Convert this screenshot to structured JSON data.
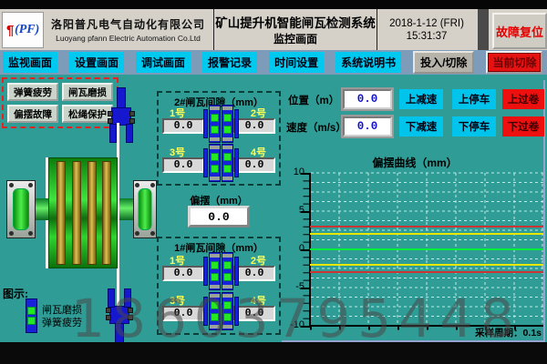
{
  "header": {
    "logo": "(PF)",
    "company_cn": "洛阳普凡电气自动化有限公司",
    "company_en": "Luoyang pfann Electric Automation Co.Ltd",
    "title_line1": "矿山提升机智能闸瓦检测系统",
    "title_line2": "监控画面",
    "date": "2018-1-12 (FRI)",
    "time": "15:31:37",
    "fault_reset": "故障复位"
  },
  "menu": {
    "items": [
      "监视画面",
      "设置画面",
      "调试画面",
      "报警记录",
      "时间设置",
      "系统说明书"
    ],
    "engage": "投入/切除",
    "current": "当前切除"
  },
  "alarm_box": {
    "buttons": [
      "弹簧疲劳",
      "闸瓦磨损",
      "偏摆故障",
      "松绳保护"
    ]
  },
  "brake2": {
    "title": "2#闸瓦间隙（mm）",
    "labels": [
      "1号",
      "2号",
      "3号",
      "4号"
    ],
    "values": [
      "0.0",
      "0.0",
      "0.0",
      "0.0"
    ]
  },
  "brake1": {
    "title": "1#闸瓦间隙（mm）",
    "labels": [
      "1号",
      "2号",
      "3号",
      "4号"
    ],
    "values": [
      "0.0",
      "0.0",
      "0.0",
      "0.0"
    ]
  },
  "deflection": {
    "label": "偏摆（mm）",
    "value": "0.0"
  },
  "status": {
    "position_label": "位置（m）",
    "position_value": "0.0",
    "speed_label": "速度（m/s）",
    "speed_value": "0.0",
    "up": [
      "上减速",
      "上停车",
      "上过卷"
    ],
    "down": [
      "下减速",
      "下停车",
      "下过卷"
    ]
  },
  "legend": {
    "title": "图示:",
    "items": [
      "闸瓦磨损",
      "弹簧疲劳"
    ]
  },
  "chart_data": {
    "type": "line",
    "title": "偏摆曲线（mm）",
    "ylim": [
      -10,
      10
    ],
    "yticks": [
      "10",
      "5",
      "0",
      "-5",
      "-10"
    ],
    "grid": true,
    "lines": [
      {
        "name": "upper-alarm-limit",
        "y": 3,
        "color": "#cc3333"
      },
      {
        "name": "upper-warning-limit",
        "y": 2,
        "color": "#e8e800"
      },
      {
        "name": "deflection-actual",
        "y": 0,
        "color": "#00ee3a"
      },
      {
        "name": "lower-warning-limit",
        "y": -2,
        "color": "#e8e800"
      },
      {
        "name": "lower-alarm-limit",
        "y": -3,
        "color": "#cc3333"
      }
    ],
    "note": "采样周期：0.1s"
  },
  "watermark": "18603795448",
  "colors": {
    "background": "#2f9c95",
    "menu_button": "#00c9ef",
    "alarm_red": "#ee1212"
  }
}
